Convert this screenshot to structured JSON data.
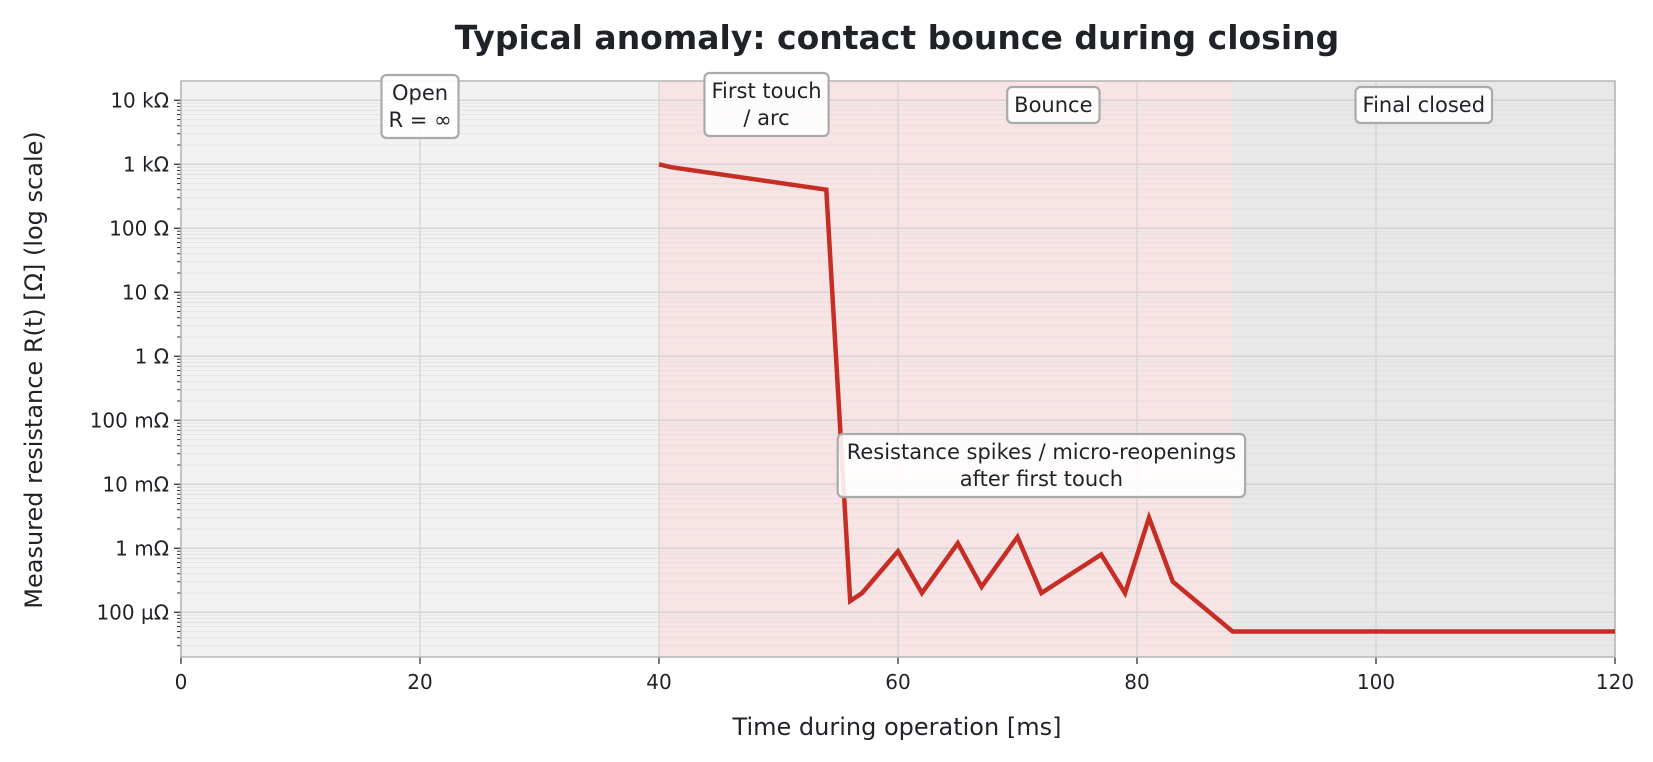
{
  "chart_data": {
    "type": "line",
    "title": "Typical anomaly: contact bounce during closing",
    "xlabel": "Time during operation [ms]",
    "ylabel": "Measured resistance R(t) [Ω] (log scale)",
    "xlim": [
      0,
      120
    ],
    "ylim": [
      2e-05,
      20000
    ],
    "y_scale": "log",
    "grid": true,
    "x_ticks": [
      0,
      20,
      40,
      60,
      80,
      100,
      120
    ],
    "x_tick_labels": [
      "0",
      "20",
      "40",
      "60",
      "80",
      "100",
      "120"
    ],
    "y_ticks": [
      0.0001,
      0.001,
      0.01,
      0.1,
      1,
      10,
      100,
      1000,
      10000
    ],
    "y_tick_labels": [
      "100 µΩ",
      "1 mΩ",
      "10 mΩ",
      "100 mΩ",
      "1 Ω",
      "10 Ω",
      "100 Ω",
      "1 kΩ",
      "10 kΩ"
    ],
    "phases": [
      {
        "name": "Open",
        "x_start": 0,
        "x_end": 40,
        "color": "#f2f2f2",
        "label": "Open\nR = ∞"
      },
      {
        "name": "First touch",
        "x_start": 40,
        "x_end": 58,
        "color": "#f8e4e4",
        "label": "First touch\n/ arc"
      },
      {
        "name": "Bounce",
        "x_start": 58,
        "x_end": 88,
        "color": "#f8e4e4",
        "label": "Bounce"
      },
      {
        "name": "Final closed",
        "x_start": 88,
        "x_end": 120,
        "color": "#e8e8e8",
        "label": "Final closed"
      }
    ],
    "series": [
      {
        "color": "#c62d25",
        "x": [
          40,
          41,
          54,
          56,
          57,
          60,
          62,
          65,
          67,
          70,
          72,
          77,
          79,
          81,
          83,
          88,
          120
        ],
        "y": [
          1000,
          900,
          400,
          0.00015,
          0.0002,
          0.0009,
          0.0002,
          0.0012,
          0.00025,
          0.0015,
          0.0002,
          0.0008,
          0.0002,
          0.003,
          0.0003,
          5e-05,
          5e-05
        ]
      }
    ],
    "annotations": [
      {
        "text": "Resistance spikes / micro-reopenings\nafter first touch",
        "x": 72,
        "y": 0.01
      }
    ]
  }
}
